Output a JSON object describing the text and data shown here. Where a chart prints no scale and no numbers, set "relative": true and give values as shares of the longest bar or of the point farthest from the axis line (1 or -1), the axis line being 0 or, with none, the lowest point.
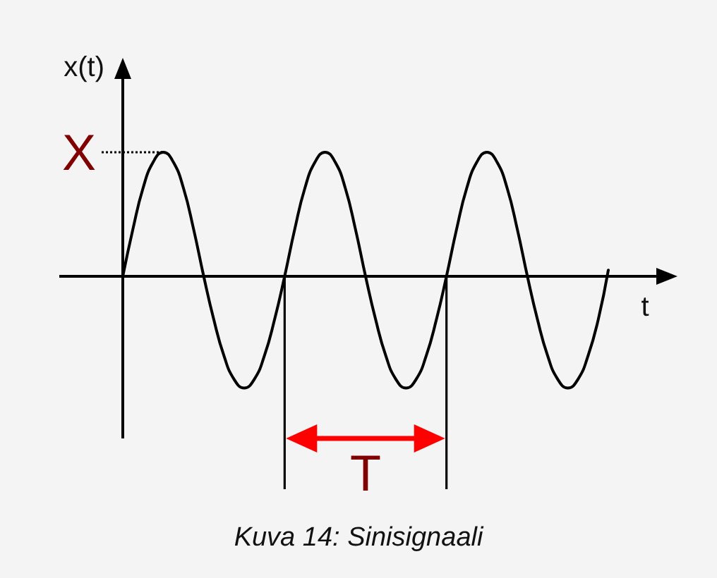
{
  "chart_data": {
    "type": "line",
    "title": "Kuva 14: Sinisignaali",
    "xlabel": "t",
    "ylabel": "x(t)",
    "relative": true,
    "color": "#000000",
    "categories": [
      null,
      null,
      null,
      null,
      null,
      null,
      null,
      null,
      null,
      null,
      null,
      null,
      null,
      null,
      null,
      null,
      null,
      null,
      null,
      null,
      null,
      null,
      null,
      null,
      null,
      null,
      null,
      null,
      null,
      null,
      null,
      null,
      null,
      null,
      null,
      null,
      null,
      null,
      null,
      null,
      null,
      null,
      null,
      null,
      null,
      null,
      null,
      null,
      null
    ],
    "values": [
      0,
      0.38,
      0.71,
      0.92,
      1,
      0.92,
      0.71,
      0.38,
      0,
      -0.35,
      -0.64,
      -0.83,
      -0.9,
      -0.83,
      -0.64,
      -0.35,
      0,
      0.38,
      0.71,
      0.92,
      1,
      0.92,
      0.71,
      0.38,
      0,
      -0.35,
      -0.64,
      -0.83,
      -0.9,
      -0.83,
      -0.64,
      -0.35,
      0,
      0.38,
      0.71,
      0.92,
      1,
      0.92,
      0.71,
      0.38,
      0,
      -0.35,
      -0.64,
      -0.83,
      -0.9,
      -0.83,
      -0.64,
      -0.35,
      0.05
    ],
    "annotations": [
      "X",
      "T"
    ]
  }
}
